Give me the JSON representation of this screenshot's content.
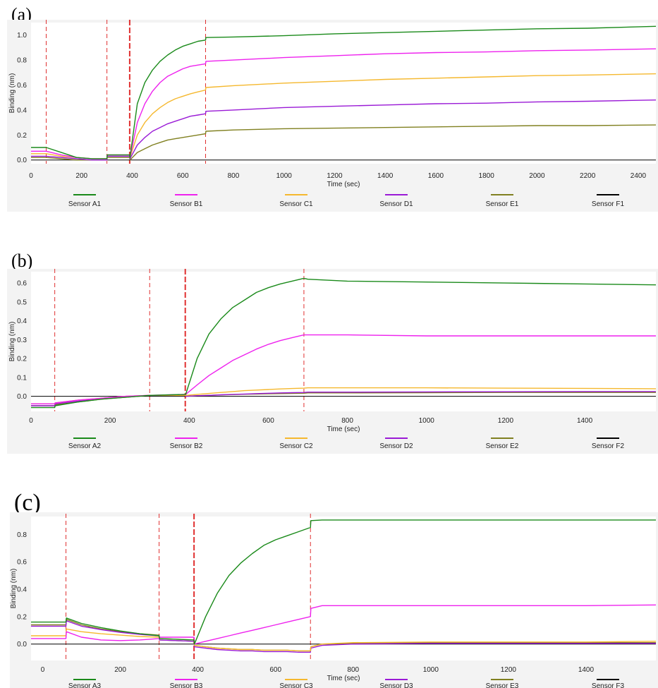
{
  "chart_data": [
    {
      "type": "line",
      "panel_label": "(a)",
      "xlabel": "Time (sec)",
      "ylabel": "Binding (nm)",
      "xlim": [
        0,
        2470
      ],
      "ylim": [
        -0.03,
        1.1
      ],
      "xticks": [
        0,
        200,
        400,
        600,
        800,
        1000,
        1200,
        1400,
        1600,
        1800,
        2000,
        2200,
        2400
      ],
      "yticks": [
        0.0,
        0.2,
        0.4,
        0.6,
        0.8,
        1.0
      ],
      "ytick_decimals": 1,
      "vlines": [
        60,
        300,
        390,
        690
      ],
      "vline_bold": 390,
      "x": [
        0,
        60,
        120,
        180,
        240,
        300,
        301,
        390,
        391,
        420,
        450,
        480,
        510,
        540,
        570,
        600,
        630,
        660,
        690,
        691,
        800,
        1000,
        1200,
        1400,
        1600,
        1800,
        2000,
        2200,
        2470
      ],
      "series": [
        {
          "name": "Sensor A1",
          "color": "#1a8a1a",
          "values": [
            0.1,
            0.1,
            0.06,
            0.02,
            0.01,
            0.01,
            0.04,
            0.04,
            0.02,
            0.45,
            0.62,
            0.72,
            0.79,
            0.84,
            0.88,
            0.91,
            0.93,
            0.95,
            0.96,
            0.98,
            0.985,
            0.995,
            1.01,
            1.02,
            1.03,
            1.04,
            1.05,
            1.055,
            1.07
          ]
        },
        {
          "name": "Sensor B1",
          "color": "#ee22ee",
          "values": [
            0.07,
            0.07,
            0.04,
            0.02,
            0.01,
            0.01,
            0.04,
            0.04,
            0.02,
            0.3,
            0.45,
            0.55,
            0.62,
            0.67,
            0.7,
            0.73,
            0.75,
            0.76,
            0.77,
            0.79,
            0.8,
            0.82,
            0.835,
            0.85,
            0.86,
            0.865,
            0.875,
            0.88,
            0.89
          ]
        },
        {
          "name": "Sensor C1",
          "color": "#f5b82e",
          "values": [
            0.05,
            0.05,
            0.03,
            0.02,
            0.01,
            0.01,
            0.04,
            0.04,
            0.02,
            0.2,
            0.3,
            0.37,
            0.42,
            0.46,
            0.49,
            0.51,
            0.53,
            0.545,
            0.56,
            0.58,
            0.595,
            0.615,
            0.63,
            0.645,
            0.655,
            0.665,
            0.675,
            0.68,
            0.69
          ]
        },
        {
          "name": "Sensor D1",
          "color": "#9a1ad6",
          "values": [
            0.03,
            0.03,
            0.02,
            0.01,
            0.0,
            0.0,
            0.03,
            0.03,
            0.01,
            0.12,
            0.18,
            0.23,
            0.26,
            0.29,
            0.31,
            0.33,
            0.35,
            0.36,
            0.37,
            0.39,
            0.4,
            0.42,
            0.43,
            0.44,
            0.45,
            0.455,
            0.465,
            0.47,
            0.48
          ]
        },
        {
          "name": "Sensor E1",
          "color": "#808020",
          "values": [
            0.02,
            0.02,
            0.01,
            0.0,
            0.0,
            0.0,
            0.02,
            0.02,
            0.0,
            0.06,
            0.09,
            0.12,
            0.14,
            0.16,
            0.17,
            0.18,
            0.19,
            0.2,
            0.21,
            0.23,
            0.24,
            0.25,
            0.255,
            0.26,
            0.265,
            0.27,
            0.275,
            0.275,
            0.28
          ]
        },
        {
          "name": "Sensor F1",
          "color": "#000000",
          "values": [
            0.0,
            0.0,
            0.0,
            0.0,
            0.0,
            0.0,
            0.0,
            0.0,
            0.0,
            0.0,
            0.0,
            0.0,
            0.0,
            0.0,
            0.0,
            0.0,
            0.0,
            0.0,
            0.0,
            0.0,
            0.0,
            0.0,
            0.0,
            0.0,
            0.0,
            0.0,
            0.0,
            0.0,
            0.0
          ]
        }
      ]
    },
    {
      "type": "line",
      "panel_label": "(b)",
      "xlabel": "Time (sec)",
      "ylabel": "Binding (nm)",
      "xlim": [
        0,
        1580
      ],
      "ylim": [
        -0.08,
        0.66
      ],
      "xticks": [
        0,
        200,
        400,
        600,
        800,
        1000,
        1200,
        1400
      ],
      "yticks": [
        0.0,
        0.1,
        0.2,
        0.3,
        0.4,
        0.5,
        0.6
      ],
      "ytick_decimals": 1,
      "vlines": [
        60,
        300,
        390,
        690
      ],
      "vline_bold": 390,
      "x": [
        0,
        60,
        61,
        120,
        180,
        240,
        300,
        390,
        391,
        420,
        450,
        480,
        510,
        540,
        570,
        600,
        630,
        660,
        690,
        700,
        800,
        1000,
        1200,
        1400,
        1580
      ],
      "series": [
        {
          "name": "Sensor A2",
          "color": "#1a8a1a",
          "values": [
            -0.06,
            -0.06,
            -0.05,
            -0.03,
            -0.015,
            -0.005,
            0.005,
            0.01,
            0.01,
            0.2,
            0.33,
            0.41,
            0.47,
            0.51,
            0.55,
            0.575,
            0.595,
            0.61,
            0.625,
            0.62,
            0.61,
            0.605,
            0.6,
            0.595,
            0.59
          ]
        },
        {
          "name": "Sensor B2",
          "color": "#ee22ee",
          "values": [
            -0.04,
            -0.04,
            -0.035,
            -0.02,
            -0.01,
            0.0,
            0.005,
            0.01,
            0.01,
            0.06,
            0.11,
            0.15,
            0.19,
            0.22,
            0.25,
            0.275,
            0.295,
            0.31,
            0.325,
            0.325,
            0.325,
            0.32,
            0.32,
            0.32,
            0.32
          ]
        },
        {
          "name": "Sensor C2",
          "color": "#f5b82e",
          "values": [
            -0.04,
            -0.04,
            -0.035,
            -0.02,
            -0.01,
            0.0,
            0.005,
            0.005,
            0.005,
            0.01,
            0.015,
            0.02,
            0.025,
            0.03,
            0.033,
            0.036,
            0.039,
            0.041,
            0.043,
            0.045,
            0.045,
            0.045,
            0.043,
            0.042,
            0.04
          ]
        },
        {
          "name": "Sensor D2",
          "color": "#9a1ad6",
          "values": [
            -0.05,
            -0.05,
            -0.04,
            -0.025,
            -0.01,
            0.0,
            0.005,
            0.005,
            0.0,
            0.003,
            0.005,
            0.008,
            0.01,
            0.012,
            0.014,
            0.016,
            0.018,
            0.019,
            0.02,
            0.022,
            0.022,
            0.023,
            0.024,
            0.025,
            0.025
          ]
        },
        {
          "name": "Sensor E2",
          "color": "#808020",
          "values": [
            -0.05,
            -0.05,
            -0.045,
            -0.03,
            -0.015,
            -0.005,
            0.005,
            0.005,
            0.0,
            0.003,
            0.005,
            0.007,
            0.009,
            0.011,
            0.012,
            0.013,
            0.014,
            0.015,
            0.016,
            0.018,
            0.018,
            0.019,
            0.02,
            0.02,
            0.02
          ]
        },
        {
          "name": "Sensor F2",
          "color": "#000000",
          "values": [
            0.0,
            0.0,
            0.0,
            0.0,
            0.0,
            0.0,
            0.0,
            0.0,
            0.0,
            0.0,
            0.0,
            0.0,
            0.0,
            0.0,
            0.0,
            0.0,
            0.0,
            0.0,
            0.0,
            0.0,
            0.0,
            0.0,
            0.0,
            0.0,
            0.0
          ]
        }
      ]
    },
    {
      "type": "line",
      "panel_label": "(c)",
      "xlabel": "Time (sec)",
      "ylabel": "Binding (nm)",
      "xlim": [
        -30,
        1580
      ],
      "ylim": [
        -0.12,
        0.93
      ],
      "xticks": [
        0,
        200,
        400,
        600,
        800,
        1000,
        1200,
        1400
      ],
      "yticks": [
        0.0,
        0.2,
        0.4,
        0.6,
        0.8
      ],
      "ytick_decimals": 1,
      "vlines": [
        60,
        300,
        390,
        690
      ],
      "vline_bold": 390,
      "x": [
        -30,
        60,
        61,
        100,
        150,
        200,
        250,
        300,
        301,
        390,
        391,
        420,
        450,
        480,
        510,
        540,
        570,
        600,
        630,
        660,
        690,
        691,
        720,
        800,
        1000,
        1200,
        1400,
        1580
      ],
      "series": [
        {
          "name": "Sensor A3",
          "color": "#1a8a1a",
          "values": [
            0.16,
            0.16,
            0.19,
            0.15,
            0.12,
            0.095,
            0.075,
            0.06,
            0.04,
            0.03,
            0.0,
            0.2,
            0.37,
            0.5,
            0.59,
            0.66,
            0.72,
            0.76,
            0.79,
            0.82,
            0.85,
            0.9,
            0.905,
            0.905,
            0.905,
            0.905,
            0.905,
            0.905
          ]
        },
        {
          "name": "Sensor B3",
          "color": "#ee22ee",
          "values": [
            0.04,
            0.04,
            0.09,
            0.05,
            0.03,
            0.025,
            0.03,
            0.04,
            0.05,
            0.05,
            0.0,
            0.02,
            0.04,
            0.06,
            0.08,
            0.1,
            0.12,
            0.14,
            0.16,
            0.18,
            0.2,
            0.26,
            0.28,
            0.28,
            0.28,
            0.28,
            0.28,
            0.285
          ]
        },
        {
          "name": "Sensor C3",
          "color": "#f5b82e",
          "values": [
            0.06,
            0.06,
            0.11,
            0.09,
            0.075,
            0.065,
            0.055,
            0.05,
            0.04,
            0.03,
            -0.01,
            -0.02,
            -0.03,
            -0.035,
            -0.04,
            -0.04,
            -0.045,
            -0.045,
            -0.045,
            -0.05,
            -0.05,
            -0.02,
            0.0,
            0.01,
            0.015,
            0.015,
            0.015,
            0.02
          ]
        },
        {
          "name": "Sensor D3",
          "color": "#9a1ad6",
          "values": [
            0.13,
            0.13,
            0.17,
            0.13,
            0.105,
            0.085,
            0.07,
            0.06,
            0.03,
            0.02,
            -0.02,
            -0.03,
            -0.04,
            -0.045,
            -0.05,
            -0.05,
            -0.055,
            -0.055,
            -0.055,
            -0.06,
            -0.06,
            -0.03,
            -0.01,
            0.0,
            0.005,
            0.005,
            0.005,
            0.005
          ]
        },
        {
          "name": "Sensor E3",
          "color": "#808020",
          "values": [
            0.14,
            0.14,
            0.18,
            0.14,
            0.11,
            0.09,
            0.075,
            0.065,
            0.03,
            0.02,
            -0.01,
            -0.02,
            -0.03,
            -0.035,
            -0.04,
            -0.04,
            -0.045,
            -0.045,
            -0.045,
            -0.05,
            -0.05,
            -0.02,
            0.0,
            0.005,
            0.01,
            0.01,
            0.01,
            0.01
          ]
        },
        {
          "name": "Sensor F3",
          "color": "#000000",
          "values": [
            0.0,
            0.0,
            0.0,
            0.0,
            0.0,
            0.0,
            0.0,
            0.0,
            0.0,
            0.0,
            0.0,
            0.0,
            0.0,
            0.0,
            0.0,
            0.0,
            0.0,
            0.0,
            0.0,
            0.0,
            0.0,
            0.0,
            0.0,
            0.0,
            0.0,
            0.0,
            0.0,
            0.0
          ]
        }
      ]
    }
  ]
}
